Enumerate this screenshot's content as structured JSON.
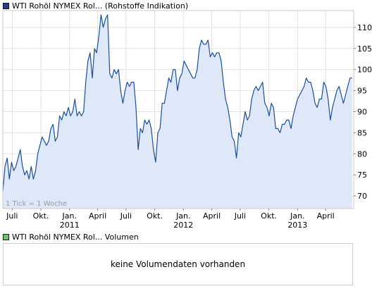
{
  "header": {
    "price_legend": "WTI Rohöl NYMEX Rol... (Rohstoffe Indikation)",
    "volume_legend": "WTI Rohöl NYMEX Rol... Volumen",
    "tick_note": "1 Tick = 1 Woche",
    "no_volume_text": "keine Volumendaten vorhanden"
  },
  "colors": {
    "line": "#1d4f91",
    "fill": "#dfe8f8",
    "grid": "#e2e2e2",
    "border": "#c8c8c8",
    "price_swatch": "#1f3f8f",
    "volume_swatch": "#6cc36c"
  },
  "chart_data": {
    "type": "area",
    "title": "WTI Rohöl NYMEX Rol... (Rohstoffe Indikation)",
    "x_ticks": [
      "Juli",
      "Okt.",
      "Jan.",
      "April",
      "Juli",
      "Okt.",
      "Jan.",
      "April",
      "Juli",
      "Okt.",
      "Jan.",
      "April"
    ],
    "year_labels": [
      {
        "label": "2011",
        "month": "2011-01"
      },
      {
        "label": "2012",
        "month": "2012-01"
      },
      {
        "label": "2013",
        "month": "2013-01"
      }
    ],
    "y_ticks": [
      70,
      75,
      80,
      85,
      90,
      95,
      100,
      105,
      110
    ],
    "ylim": [
      67,
      114
    ],
    "xlim": [
      "2010-06-01",
      "2013-06-30"
    ],
    "grid": true,
    "series": [
      {
        "values": [
          [
            "2010-06-01",
            71
          ],
          [
            "2010-06-08",
            77
          ],
          [
            "2010-06-15",
            79
          ],
          [
            "2010-06-22",
            74
          ],
          [
            "2010-06-29",
            78
          ],
          [
            "2010-07-06",
            76
          ],
          [
            "2010-07-13",
            77
          ],
          [
            "2010-07-20",
            79
          ],
          [
            "2010-07-27",
            81
          ],
          [
            "2010-08-03",
            77
          ],
          [
            "2010-08-10",
            75
          ],
          [
            "2010-08-17",
            76
          ],
          [
            "2010-08-24",
            74
          ],
          [
            "2010-08-31",
            77
          ],
          [
            "2010-09-07",
            74
          ],
          [
            "2010-09-14",
            76
          ],
          [
            "2010-09-21",
            80
          ],
          [
            "2010-09-28",
            82
          ],
          [
            "2010-10-05",
            84
          ],
          [
            "2010-10-12",
            83
          ],
          [
            "2010-10-19",
            82
          ],
          [
            "2010-10-26",
            83
          ],
          [
            "2010-11-02",
            86
          ],
          [
            "2010-11-09",
            87
          ],
          [
            "2010-11-16",
            83
          ],
          [
            "2010-11-23",
            84
          ],
          [
            "2010-11-30",
            89
          ],
          [
            "2010-12-07",
            88
          ],
          [
            "2010-12-14",
            90
          ],
          [
            "2010-12-21",
            89
          ],
          [
            "2010-12-28",
            91
          ],
          [
            "2011-01-04",
            89
          ],
          [
            "2011-01-11",
            90
          ],
          [
            "2011-01-18",
            93
          ],
          [
            "2011-01-25",
            89
          ],
          [
            "2011-02-01",
            90
          ],
          [
            "2011-02-08",
            89
          ],
          [
            "2011-02-15",
            90
          ],
          [
            "2011-02-22",
            97
          ],
          [
            "2011-03-01",
            102
          ],
          [
            "2011-03-08",
            104
          ],
          [
            "2011-03-15",
            98
          ],
          [
            "2011-03-22",
            105
          ],
          [
            "2011-03-29",
            104
          ],
          [
            "2011-04-05",
            108
          ],
          [
            "2011-04-12",
            113
          ],
          [
            "2011-04-19",
            110
          ],
          [
            "2011-04-26",
            112
          ],
          [
            "2011-05-03",
            113
          ],
          [
            "2011-05-10",
            99
          ],
          [
            "2011-05-17",
            98
          ],
          [
            "2011-05-24",
            100
          ],
          [
            "2011-05-31",
            99
          ],
          [
            "2011-06-07",
            100
          ],
          [
            "2011-06-14",
            95
          ],
          [
            "2011-06-21",
            92
          ],
          [
            "2011-06-28",
            95
          ],
          [
            "2011-07-05",
            97
          ],
          [
            "2011-07-12",
            96
          ],
          [
            "2011-07-19",
            97
          ],
          [
            "2011-07-26",
            97
          ],
          [
            "2011-08-02",
            91
          ],
          [
            "2011-08-09",
            81
          ],
          [
            "2011-08-16",
            86
          ],
          [
            "2011-08-23",
            85
          ],
          [
            "2011-08-30",
            88
          ],
          [
            "2011-09-06",
            87
          ],
          [
            "2011-09-13",
            88
          ],
          [
            "2011-09-20",
            86
          ],
          [
            "2011-09-27",
            81
          ],
          [
            "2011-10-04",
            78
          ],
          [
            "2011-10-11",
            85
          ],
          [
            "2011-10-18",
            86
          ],
          [
            "2011-10-25",
            92
          ],
          [
            "2011-11-01",
            92
          ],
          [
            "2011-11-08",
            95
          ],
          [
            "2011-11-15",
            98
          ],
          [
            "2011-11-22",
            97
          ],
          [
            "2011-11-29",
            100
          ],
          [
            "2011-12-06",
            100
          ],
          [
            "2011-12-13",
            95
          ],
          [
            "2011-12-20",
            98
          ],
          [
            "2011-12-27",
            99
          ],
          [
            "2012-01-03",
            102
          ],
          [
            "2012-01-10",
            101
          ],
          [
            "2012-01-17",
            100
          ],
          [
            "2012-01-24",
            99
          ],
          [
            "2012-01-31",
            98
          ],
          [
            "2012-02-07",
            98
          ],
          [
            "2012-02-14",
            100
          ],
          [
            "2012-02-21",
            105
          ],
          [
            "2012-02-28",
            107
          ],
          [
            "2012-03-06",
            106
          ],
          [
            "2012-03-13",
            106
          ],
          [
            "2012-03-20",
            107
          ],
          [
            "2012-03-27",
            103
          ],
          [
            "2012-04-03",
            104
          ],
          [
            "2012-04-10",
            103
          ],
          [
            "2012-04-17",
            104
          ],
          [
            "2012-04-24",
            104
          ],
          [
            "2012-05-01",
            102
          ],
          [
            "2012-05-08",
            97
          ],
          [
            "2012-05-15",
            93
          ],
          [
            "2012-05-22",
            91
          ],
          [
            "2012-05-29",
            88
          ],
          [
            "2012-06-05",
            84
          ],
          [
            "2012-06-12",
            83
          ],
          [
            "2012-06-19",
            79
          ],
          [
            "2012-06-26",
            85
          ],
          [
            "2012-07-03",
            84
          ],
          [
            "2012-07-10",
            87
          ],
          [
            "2012-07-17",
            90
          ],
          [
            "2012-07-24",
            88
          ],
          [
            "2012-07-31",
            89
          ],
          [
            "2012-08-07",
            93
          ],
          [
            "2012-08-14",
            95
          ],
          [
            "2012-08-21",
            96
          ],
          [
            "2012-08-28",
            95
          ],
          [
            "2012-09-04",
            96
          ],
          [
            "2012-09-11",
            97
          ],
          [
            "2012-09-18",
            92
          ],
          [
            "2012-09-25",
            91
          ],
          [
            "2012-10-02",
            89
          ],
          [
            "2012-10-09",
            92
          ],
          [
            "2012-10-16",
            91
          ],
          [
            "2012-10-23",
            86
          ],
          [
            "2012-10-30",
            86
          ],
          [
            "2012-11-06",
            85
          ],
          [
            "2012-11-13",
            87
          ],
          [
            "2012-11-20",
            87
          ],
          [
            "2012-11-27",
            88
          ],
          [
            "2012-12-04",
            88
          ],
          [
            "2012-12-11",
            86
          ],
          [
            "2012-12-18",
            89
          ],
          [
            "2012-12-25",
            91
          ],
          [
            "2013-01-01",
            93
          ],
          [
            "2013-01-08",
            94
          ],
          [
            "2013-01-15",
            95
          ],
          [
            "2013-01-22",
            96
          ],
          [
            "2013-01-29",
            98
          ],
          [
            "2013-02-05",
            97
          ],
          [
            "2013-02-12",
            97
          ],
          [
            "2013-02-19",
            95
          ],
          [
            "2013-02-26",
            92
          ],
          [
            "2013-03-05",
            91
          ],
          [
            "2013-03-12",
            93
          ],
          [
            "2013-03-19",
            93
          ],
          [
            "2013-03-26",
            97
          ],
          [
            "2013-04-02",
            96
          ],
          [
            "2013-04-09",
            93
          ],
          [
            "2013-04-16",
            88
          ],
          [
            "2013-04-23",
            91
          ],
          [
            "2013-04-30",
            93
          ],
          [
            "2013-05-07",
            95
          ],
          [
            "2013-05-14",
            96
          ],
          [
            "2013-05-21",
            94
          ],
          [
            "2013-05-28",
            92
          ],
          [
            "2013-06-04",
            94
          ],
          [
            "2013-06-11",
            96
          ],
          [
            "2013-06-18",
            98
          ],
          [
            "2013-06-25",
            98
          ]
        ]
      }
    ]
  }
}
